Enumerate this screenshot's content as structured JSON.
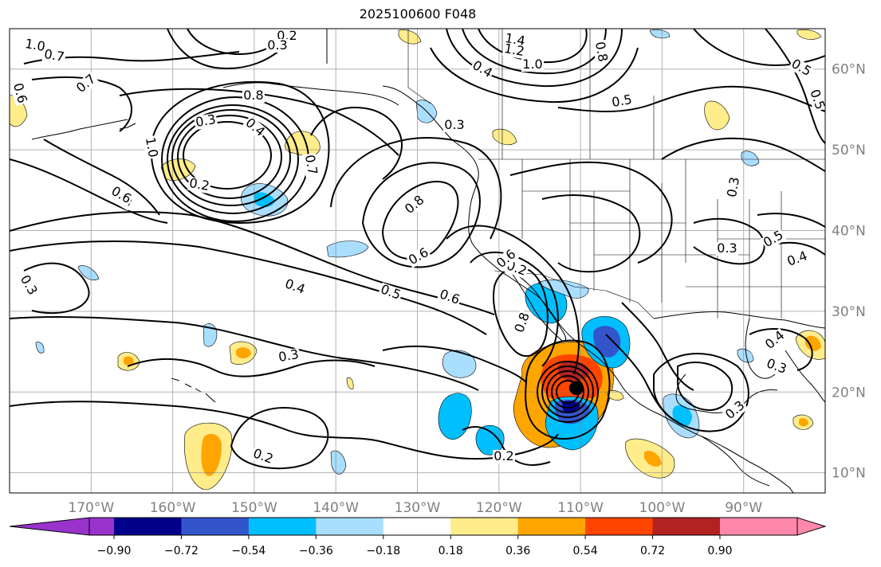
{
  "title": "2025100600 F048",
  "map": {
    "projection": "PlateCarree",
    "extent_lon": [
      -180,
      -80
    ],
    "extent_lat": [
      7.5,
      65
    ],
    "gridline_lons": [
      -170,
      -160,
      -150,
      -140,
      -130,
      -120,
      -110,
      -100,
      -90
    ],
    "gridline_lats": [
      10,
      20,
      30,
      40,
      50,
      60
    ],
    "lon_labels": [
      "170°W",
      "160°W",
      "150°W",
      "140°W",
      "130°W",
      "120°W",
      "110°W",
      "100°W",
      "90°W"
    ],
    "lat_labels": [
      "10°N",
      "20°N",
      "30°N",
      "40°N",
      "50°N",
      "60°N"
    ],
    "storm_center": {
      "lon": -110.5,
      "lat": 20.5
    },
    "contour_labels": [
      "1.0",
      "0.7",
      "0.2",
      "0.3",
      "1.4",
      "1.2",
      "1.0",
      "0.8",
      "0.5",
      "0.6",
      "0.4",
      "0.5",
      "0.8",
      "0.3",
      "0.4",
      "0.7",
      "0.2",
      "0.8",
      "0.7",
      "0.8",
      "0.6",
      "0.5",
      "0.4",
      "0.3",
      "0.3",
      "0.2",
      "0.3",
      "0.6",
      "0.2",
      "0.8",
      "0.4",
      "0.3",
      "0.3",
      "0.2",
      "0.3",
      "0.5",
      "0.4",
      "0.3",
      "0.6",
      "0.5",
      "1.0",
      "0.6"
    ],
    "shading_colors": {
      "neg_090": "#9933cc",
      "neg_072": "#00008b",
      "neg_054": "#3355cc",
      "neg_036": "#00bfff",
      "neg_018": "#aadeff",
      "pos_018": "#ffec8b",
      "pos_036": "#ffa500",
      "pos_054": "#ff4500",
      "pos_072": "#b22222",
      "pos_090": "#ff88aa"
    }
  },
  "colorbar": {
    "ticks": [
      "−0.90",
      "−0.72",
      "−0.54",
      "−0.36",
      "−0.18",
      "0.18",
      "0.36",
      "0.54",
      "0.72",
      "0.90"
    ],
    "colors": [
      "#9933cc",
      "#00008b",
      "#3355cc",
      "#00bfff",
      "#aadeff",
      "#ffffff",
      "#ffec8b",
      "#ffa500",
      "#ff4500",
      "#b22222",
      "#ff88aa"
    ]
  }
}
